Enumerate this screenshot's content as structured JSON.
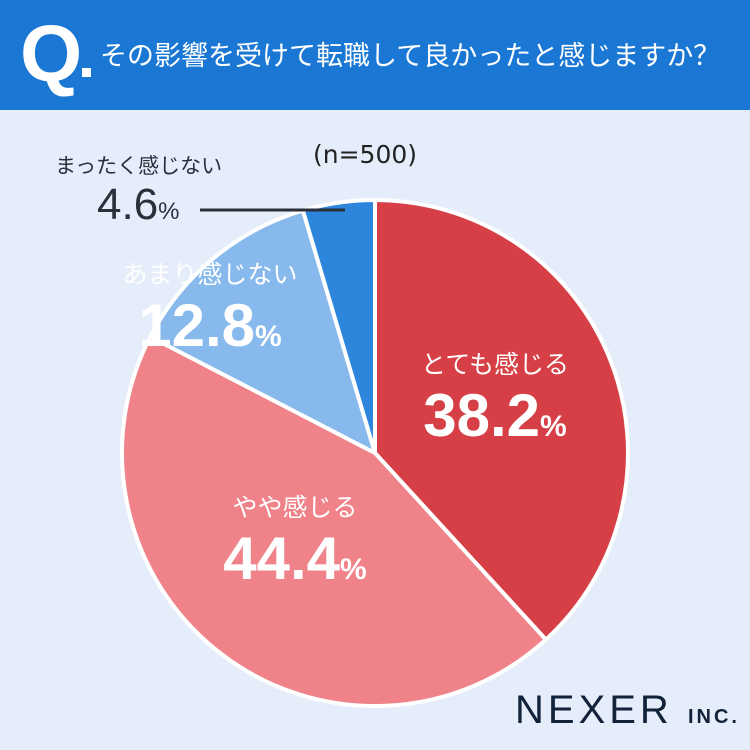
{
  "header": {
    "q": "Q",
    "title": "その影響を受けて転職して良かったと感じますか？"
  },
  "chart_data": {
    "type": "pie",
    "title": "その影響を受けて転職して良かったと感じますか？",
    "note": "(n=500)",
    "categories": [
      "とても感じる",
      "やや感じる",
      "あまり感じない",
      "まったく感じない"
    ],
    "values": [
      38.2,
      44.4,
      12.8,
      4.6
    ],
    "value_labels": [
      "38.2",
      "44.4",
      "12.8",
      "4.6"
    ],
    "unit": "%",
    "colors": [
      "#d63f45",
      "#ef8389",
      "#87b9ed",
      "#2e86dc"
    ]
  },
  "logo": {
    "main": "NEXER",
    "sub": "INC."
  }
}
